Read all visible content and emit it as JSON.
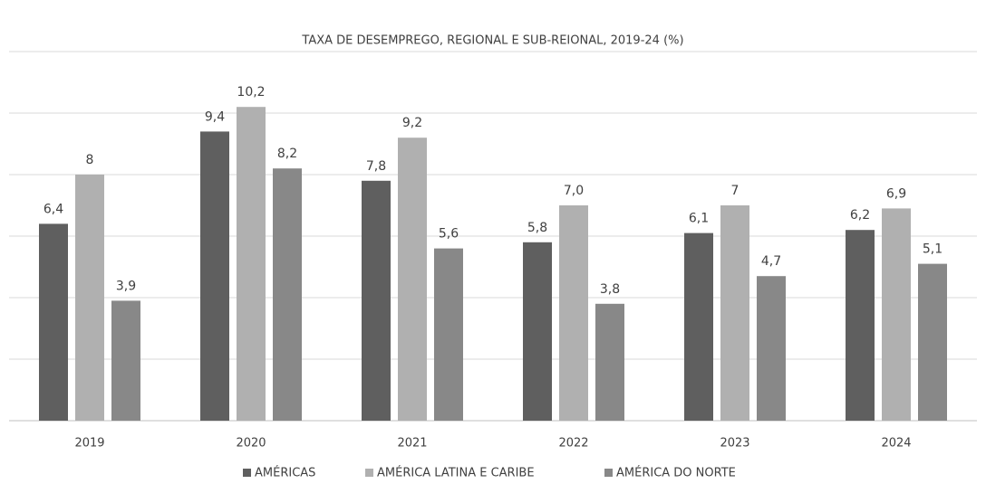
{
  "chart_data": {
    "type": "bar",
    "title": "TAXA DE DESEMPREGO, REGIONAL E SUB-REIONAL, 2019-24 (%)",
    "categories": [
      "2019",
      "2020",
      "2021",
      "2022",
      "2023",
      "2024"
    ],
    "series": [
      {
        "name": "AMÉRICAS",
        "color": "#5f5f5f",
        "values": [
          6.4,
          9.4,
          7.8,
          5.8,
          6.1,
          6.2
        ],
        "value_labels": [
          "6,4",
          "9,4",
          "7,8",
          "5,8",
          "6,1",
          "6,2"
        ]
      },
      {
        "name": "AMÉRICA LATINA E CARIBE",
        "color": "#b0b0b0",
        "values": [
          8,
          10.2,
          9.2,
          7.0,
          7,
          6.9
        ],
        "value_labels": [
          "8",
          "10,2",
          "9,2",
          "7,0",
          "7",
          "6,9"
        ]
      },
      {
        "name": "AMÉRICA DO NORTE",
        "color": "#888888",
        "values": [
          3.9,
          8.2,
          5.6,
          3.8,
          4.7,
          5.1
        ],
        "value_labels": [
          "3,9",
          "8,2",
          "5,6",
          "3,8",
          "4,7",
          "5,1"
        ]
      }
    ],
    "ylim": [
      0,
      12
    ],
    "yticks": [
      0,
      2,
      4,
      6,
      8,
      10,
      12
    ],
    "grid": true,
    "legend": "bottom"
  }
}
